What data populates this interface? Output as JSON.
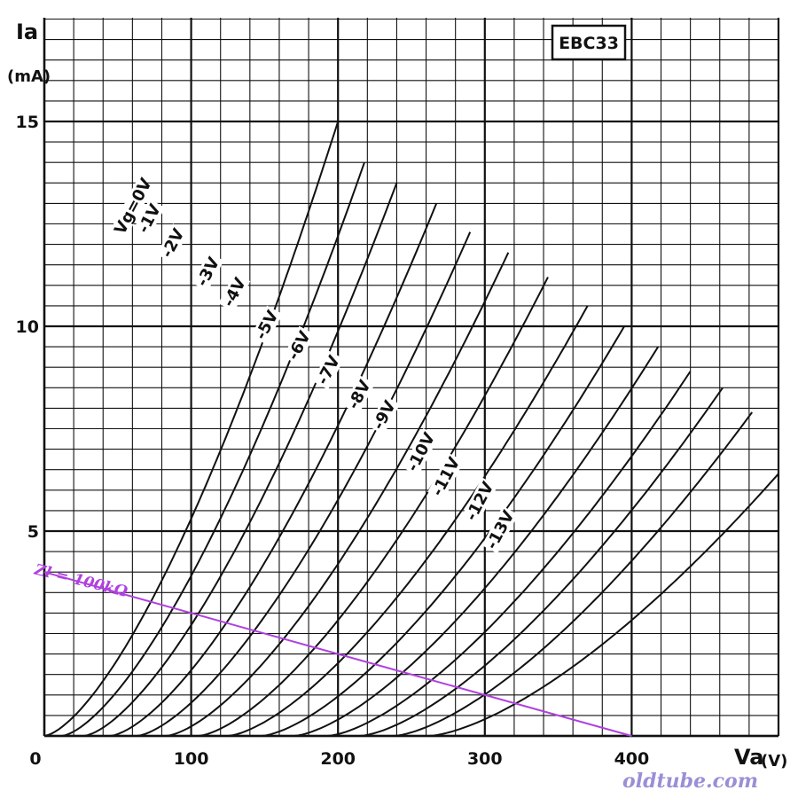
{
  "chart_data": {
    "type": "line",
    "title": "EBC33",
    "ylabel": "Ia",
    "ylabel_sub": "a",
    "yunit": "(mA)",
    "xlabel": "Va",
    "xlabel_sub": "a",
    "xunit": "(V)",
    "xlim": [
      0,
      500
    ],
    "ylim": [
      0,
      17.5
    ],
    "grid": true,
    "xticks": [
      {
        "v": 0,
        "t": "0"
      },
      {
        "v": 100,
        "t": "100"
      },
      {
        "v": 200,
        "t": "200"
      },
      {
        "v": 300,
        "t": "300"
      },
      {
        "v": 400,
        "t": "400"
      }
    ],
    "yticks": [
      {
        "v": 5,
        "t": "5"
      },
      {
        "v": 10,
        "t": "10"
      },
      {
        "v": 15,
        "t": "15"
      }
    ],
    "series": [
      {
        "name": "Vg=0V",
        "label": "Vg=0V",
        "x0": 0,
        "x1": 200,
        "y1": 15.0,
        "lx": 62,
        "ly": 12.9
      },
      {
        "name": "-1V",
        "label": "-1V",
        "x0": 12,
        "x1": 218,
        "y1": 14.0,
        "lx": 73,
        "ly": 12.6
      },
      {
        "name": "-2V",
        "label": "-2V",
        "x0": 27,
        "x1": 240,
        "y1": 13.5,
        "lx": 89,
        "ly": 12.0
      },
      {
        "name": "-3V",
        "label": "-3V",
        "x0": 45,
        "x1": 267,
        "y1": 13.0,
        "lx": 113,
        "ly": 11.3
      },
      {
        "name": "-4V",
        "label": "-4V",
        "x0": 63,
        "x1": 290,
        "y1": 12.3,
        "lx": 131,
        "ly": 10.8
      },
      {
        "name": "-5V",
        "label": "-5V",
        "x0": 83,
        "x1": 316,
        "y1": 11.8,
        "lx": 153,
        "ly": 10.0
      },
      {
        "name": "-6V",
        "label": "-6V",
        "x0": 105,
        "x1": 343,
        "y1": 11.2,
        "lx": 175,
        "ly": 9.5
      },
      {
        "name": "-7V",
        "label": "-7V",
        "x0": 125,
        "x1": 370,
        "y1": 10.5,
        "lx": 195,
        "ly": 8.9
      },
      {
        "name": "-8V",
        "label": "-8V",
        "x0": 148,
        "x1": 395,
        "y1": 10.0,
        "lx": 216,
        "ly": 8.3
      },
      {
        "name": "-9V",
        "label": "-9V",
        "x0": 170,
        "x1": 418,
        "y1": 9.5,
        "lx": 233,
        "ly": 7.8
      },
      {
        "name": "-10V",
        "label": "-10V",
        "x0": 193,
        "x1": 440,
        "y1": 8.9,
        "lx": 258,
        "ly": 6.9
      },
      {
        "name": "-11V",
        "label": "-11V",
        "x0": 215,
        "x1": 462,
        "y1": 8.5,
        "lx": 275,
        "ly": 6.3
      },
      {
        "name": "-12V",
        "label": "-12V",
        "x0": 238,
        "x1": 482,
        "y1": 7.9,
        "lx": 298,
        "ly": 5.7
      },
      {
        "name": "-13V",
        "label": "-13V",
        "x0": 262,
        "x1": 500,
        "y1": 6.4,
        "lx": 312,
        "ly": 5.0
      }
    ],
    "load_line": {
      "label": "Zl = 100kΩ",
      "x0": 0,
      "y0": 4.0,
      "x1": 400,
      "y1": 0,
      "color": "#b040e0"
    }
  },
  "watermark": "oldtube.com"
}
